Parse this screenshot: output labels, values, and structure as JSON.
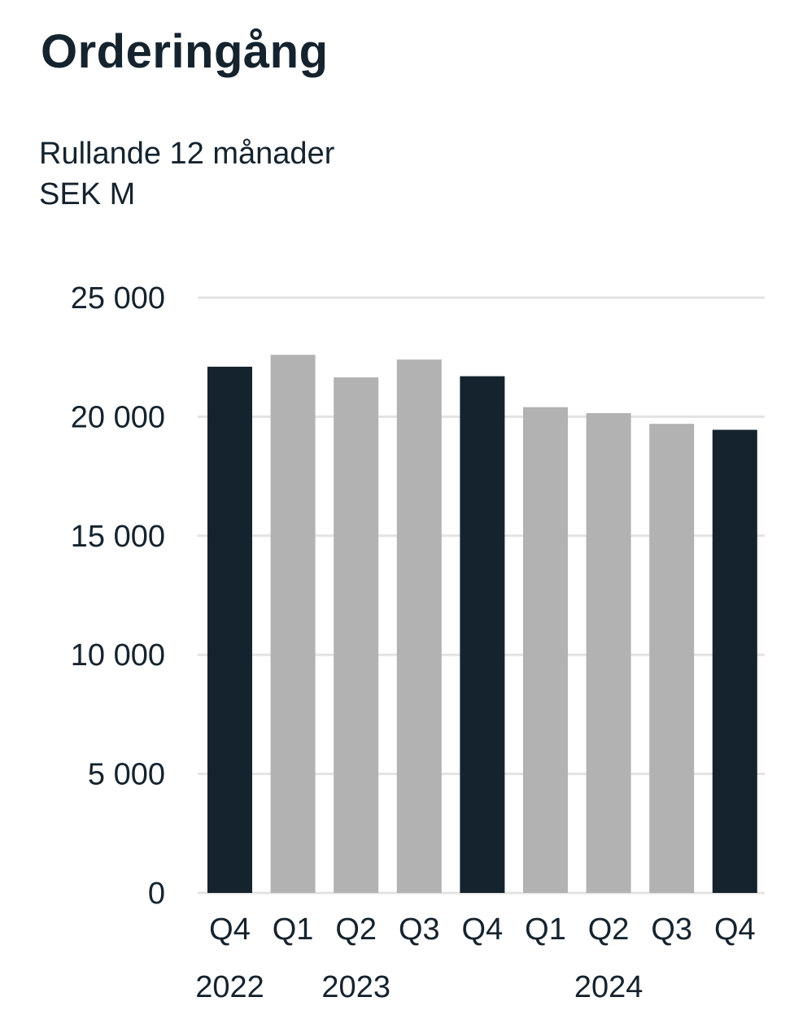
{
  "chart_data": {
    "type": "bar",
    "title": "Orderingång",
    "subtitle": [
      "Rullande 12 månader",
      "SEK M"
    ],
    "xlabel": "",
    "ylabel": "",
    "ylim": [
      0,
      25000
    ],
    "yticks": [
      0,
      5000,
      10000,
      15000,
      20000,
      25000
    ],
    "ytick_labels": [
      "0",
      "5 000",
      "10 000",
      "15 000",
      "20 000",
      "25 000"
    ],
    "grid": true,
    "categories": [
      "Q4",
      "Q1",
      "Q2",
      "Q3",
      "Q4",
      "Q1",
      "Q2",
      "Q3",
      "Q4"
    ],
    "years": [
      {
        "label": "2022",
        "from": 0,
        "to": 0
      },
      {
        "label": "2023",
        "from": 1,
        "to": 3
      },
      {
        "label": "2024",
        "from": 5,
        "to": 7
      }
    ],
    "values": [
      22100,
      22600,
      21650,
      22400,
      21700,
      20400,
      20150,
      19700,
      19450
    ],
    "highlight": [
      true,
      false,
      false,
      false,
      true,
      false,
      false,
      false,
      true
    ],
    "colors": {
      "highlight": "#15232e",
      "normal": "#b2b2b2",
      "grid": "#e3e3e3"
    }
  }
}
